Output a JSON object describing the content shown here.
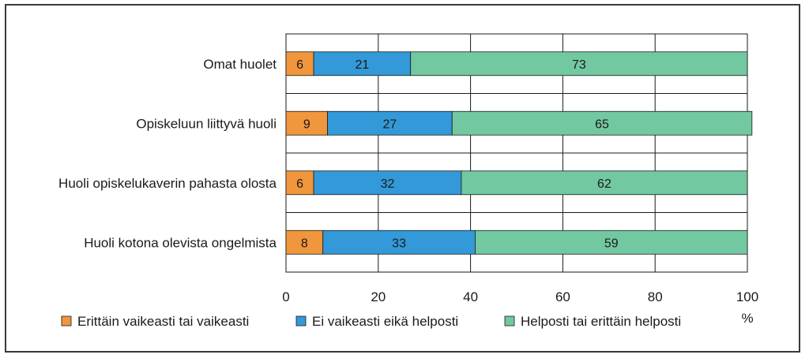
{
  "chart_data": {
    "type": "bar",
    "orientation": "horizontal",
    "stacked": true,
    "categories": [
      "Omat huolet",
      "Opiskeluun liittyvä huoli",
      "Huoli opiskelukaverin pahasta olosta",
      "Huoli kotona olevista ongelmista"
    ],
    "series": [
      {
        "name": "Erittäin vaikeasti tai vaikeasti",
        "color": "#f0963c",
        "values": [
          6,
          9,
          6,
          8
        ]
      },
      {
        "name": "Ei vaikeasti eikä helposti",
        "color": "#3399d8",
        "values": [
          21,
          27,
          32,
          33
        ]
      },
      {
        "name": "Helposti tai erittäin helposti",
        "color": "#72c8a0",
        "values": [
          73,
          65,
          62,
          59
        ]
      }
    ],
    "xlim": [
      0,
      100
    ],
    "xticks": [
      0,
      20,
      40,
      60,
      80,
      100
    ],
    "xlabel": "%",
    "grid": true,
    "legend_position": "bottom"
  }
}
